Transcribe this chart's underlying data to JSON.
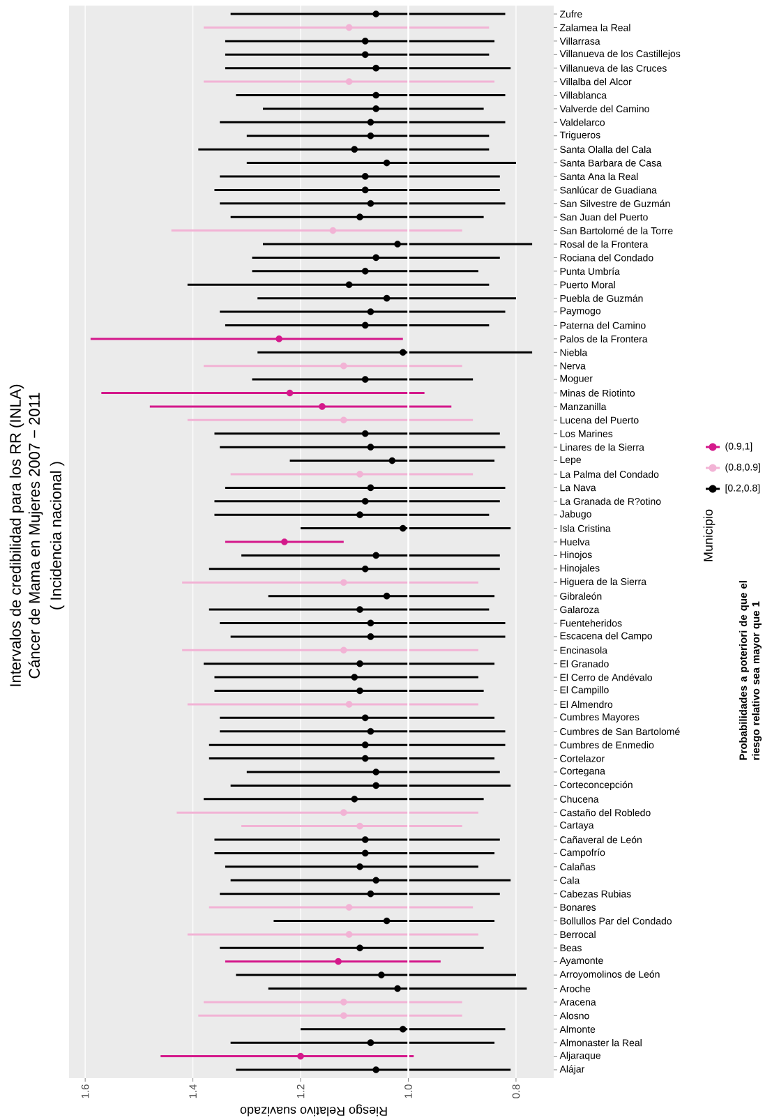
{
  "chart_data": {
    "type": "scatter",
    "orientation": "horizontal",
    "title": "Intervalos de credibilidad para los RR (INLA)",
    "subtitle": "Cáncer de Mama en Mujeres 2007 − 2011",
    "annotations": [
      "( Incidencia nacional )"
    ],
    "xlabel": "Riesgo Relativo suavizado",
    "ylabel": "Municipio",
    "legend_title": "Probabilidades a poteriori de que el riesgo relativo sea mayor que 1",
    "legend": "right",
    "grid": "x",
    "marker": "circle",
    "xlim": [
      1.63,
      0.73
    ],
    "xticks": [
      1.6,
      1.4,
      1.2,
      {
        "value": 1,
        "label": "1.0"
      },
      0.8
    ],
    "ref_lines": [
      {
        "axis": "x",
        "value": 1,
        "color": "#ffffff"
      }
    ],
    "categories": [
      "Zufre",
      "Zalamea la Real",
      "Villarrasa",
      "Villanueva de los Castillejos",
      "Villanueva de las Cruces",
      "Villalba del Alcor",
      "Villablanca",
      "Valverde del Camino",
      "Valdelarco",
      "Trigueros",
      "Santa Olalla del Cala",
      "Santa Barbara de Casa",
      "Santa Ana la Real",
      "Sanlúcar de Guadiana",
      "San Silvestre de Guzmán",
      "San Juan del Puerto",
      "San Bartolomé de la Torre",
      "Rosal de la Frontera",
      "Rociana del Condado",
      "Punta Umbría",
      "Puerto Moral",
      "Puebla de Guzmán",
      "Paymogo",
      "Paterna del Camino",
      "Palos de la Frontera",
      "Niebla",
      "Nerva",
      "Moguer",
      "Minas de Riotinto",
      "Manzanilla",
      "Lucena del Puerto",
      "Los Marines",
      "Linares de la Sierra",
      "Lepe",
      "La Palma del Condado",
      "La Nava",
      "La Granada de R?otino",
      "Jabugo",
      "Isla Cristina",
      "Huelva",
      "Hinojos",
      "Hinojales",
      "Higuera de la Sierra",
      "Gibraleón",
      "Galaroza",
      "Fuenteheridos",
      "Escacena del Campo",
      "Encinasola",
      "El Granado",
      "El Cerro de Andévalo",
      "El Campillo",
      "El Almendro",
      "Cumbres Mayores",
      "Cumbres de San Bartolomé",
      "Cumbres de Enmedio",
      "Cortelazor",
      "Cortegana",
      "Corteconcepción",
      "Chucena",
      "Castaño del Robledo",
      "Cartaya",
      "Cañaveral de León",
      "Campofrío",
      "Calañas",
      "Cala",
      "Cabezas Rubias",
      "Bonares",
      "Bollullos Par del Condado",
      "Berrocal",
      "Beas",
      "Ayamonte",
      "Arroyomolinos de León",
      "Aroche",
      "Aracena",
      "Alosno",
      "Almonte",
      "Almonaster la Real",
      "Aljaraque",
      "Alájar"
    ],
    "series": [
      {
        "name": "[0.2,0.8]",
        "color": "#000000",
        "values": [
          1.06,
          null,
          1.08,
          1.08,
          1.06,
          null,
          1.06,
          1.06,
          1.07,
          1.07,
          1.1,
          1.04,
          1.08,
          1.08,
          1.07,
          1.09,
          null,
          1.02,
          1.06,
          1.08,
          1.11,
          1.04,
          1.07,
          1.08,
          null,
          1.01,
          null,
          1.08,
          null,
          null,
          null,
          1.08,
          1.07,
          1.03,
          null,
          1.07,
          1.08,
          1.09,
          1.01,
          null,
          1.06,
          1.08,
          null,
          1.04,
          1.09,
          1.07,
          1.07,
          null,
          1.09,
          1.1,
          1.09,
          null,
          1.08,
          1.07,
          1.08,
          1.08,
          1.06,
          1.06,
          1.1,
          null,
          null,
          1.08,
          1.08,
          1.09,
          1.06,
          1.07,
          null,
          1.04,
          null,
          1.09,
          null,
          1.05,
          1.02,
          null,
          null,
          1.01,
          1.07,
          null,
          1.06
        ],
        "errors": [
          [
            0.82,
            1.33
          ],
          null,
          [
            0.84,
            1.34
          ],
          [
            0.85,
            1.34
          ],
          [
            0.81,
            1.34
          ],
          null,
          [
            0.82,
            1.32
          ],
          [
            0.86,
            1.27
          ],
          [
            0.82,
            1.35
          ],
          [
            0.85,
            1.3
          ],
          [
            0.85,
            1.39
          ],
          [
            0.8,
            1.3
          ],
          [
            0.83,
            1.35
          ],
          [
            0.83,
            1.36
          ],
          [
            0.82,
            1.35
          ],
          [
            0.86,
            1.33
          ],
          null,
          [
            0.77,
            1.27
          ],
          [
            0.83,
            1.29
          ],
          [
            0.87,
            1.29
          ],
          [
            0.85,
            1.41
          ],
          [
            0.8,
            1.28
          ],
          [
            0.82,
            1.35
          ],
          [
            0.85,
            1.34
          ],
          null,
          [
            0.77,
            1.28
          ],
          null,
          [
            0.88,
            1.29
          ],
          null,
          null,
          null,
          [
            0.83,
            1.36
          ],
          [
            0.82,
            1.35
          ],
          [
            0.84,
            1.22
          ],
          null,
          [
            0.82,
            1.34
          ],
          [
            0.83,
            1.36
          ],
          [
            0.85,
            1.36
          ],
          [
            0.81,
            1.2
          ],
          null,
          [
            0.83,
            1.31
          ],
          [
            0.83,
            1.37
          ],
          null,
          [
            0.84,
            1.26
          ],
          [
            0.85,
            1.37
          ],
          [
            0.82,
            1.35
          ],
          [
            0.82,
            1.33
          ],
          null,
          [
            0.84,
            1.38
          ],
          [
            0.87,
            1.36
          ],
          [
            0.86,
            1.36
          ],
          null,
          [
            0.84,
            1.35
          ],
          [
            0.82,
            1.35
          ],
          [
            0.82,
            1.37
          ],
          [
            0.84,
            1.37
          ],
          [
            0.83,
            1.3
          ],
          [
            0.81,
            1.33
          ],
          [
            0.86,
            1.38
          ],
          null,
          null,
          [
            0.83,
            1.36
          ],
          [
            0.84,
            1.36
          ],
          [
            0.87,
            1.34
          ],
          [
            0.81,
            1.33
          ],
          [
            0.83,
            1.35
          ],
          null,
          [
            0.84,
            1.25
          ],
          null,
          [
            0.86,
            1.35
          ],
          null,
          [
            0.8,
            1.32
          ],
          [
            0.78,
            1.26
          ],
          null,
          null,
          [
            0.82,
            1.2
          ],
          [
            0.84,
            1.33
          ],
          null,
          [
            0.81,
            1.32
          ]
        ]
      },
      {
        "name": "(0.8,0.9]",
        "color": "#f2b3d5",
        "values": [
          null,
          1.11,
          null,
          null,
          null,
          1.11,
          null,
          null,
          null,
          null,
          null,
          null,
          null,
          null,
          null,
          null,
          1.14,
          null,
          null,
          null,
          null,
          null,
          null,
          null,
          null,
          null,
          1.12,
          null,
          null,
          null,
          1.12,
          null,
          null,
          null,
          1.09,
          null,
          null,
          null,
          null,
          null,
          null,
          null,
          1.12,
          null,
          null,
          null,
          null,
          1.12,
          null,
          null,
          null,
          1.11,
          null,
          null,
          null,
          null,
          null,
          null,
          null,
          1.12,
          1.09,
          null,
          null,
          null,
          null,
          null,
          1.11,
          null,
          1.11,
          null,
          null,
          null,
          null,
          1.12,
          1.12,
          null,
          null,
          null,
          null
        ],
        "errors": [
          null,
          [
            0.85,
            1.38
          ],
          null,
          null,
          null,
          [
            0.84,
            1.38
          ],
          null,
          null,
          null,
          null,
          null,
          null,
          null,
          null,
          null,
          null,
          [
            0.9,
            1.44
          ],
          null,
          null,
          null,
          null,
          null,
          null,
          null,
          null,
          null,
          [
            0.9,
            1.38
          ],
          null,
          null,
          null,
          [
            0.88,
            1.41
          ],
          null,
          null,
          null,
          [
            0.88,
            1.33
          ],
          null,
          null,
          null,
          null,
          null,
          null,
          null,
          [
            0.87,
            1.42
          ],
          null,
          null,
          null,
          null,
          [
            0.87,
            1.42
          ],
          null,
          null,
          null,
          [
            0.87,
            1.41
          ],
          null,
          null,
          null,
          null,
          null,
          null,
          null,
          [
            0.87,
            1.43
          ],
          [
            0.9,
            1.31
          ],
          null,
          null,
          null,
          null,
          null,
          [
            0.88,
            1.37
          ],
          null,
          [
            0.87,
            1.41
          ],
          null,
          null,
          null,
          null,
          [
            0.9,
            1.38
          ],
          [
            0.9,
            1.39
          ],
          null,
          null,
          null,
          null
        ]
      },
      {
        "name": "(0.9,1]",
        "color": "#d4198b",
        "values": [
          null,
          null,
          null,
          null,
          null,
          null,
          null,
          null,
          null,
          null,
          null,
          null,
          null,
          null,
          null,
          null,
          null,
          null,
          null,
          null,
          null,
          null,
          null,
          null,
          1.24,
          null,
          null,
          null,
          1.22,
          1.16,
          null,
          null,
          null,
          null,
          null,
          null,
          null,
          null,
          null,
          1.23,
          null,
          null,
          null,
          null,
          null,
          null,
          null,
          null,
          null,
          null,
          null,
          null,
          null,
          null,
          null,
          null,
          null,
          null,
          null,
          null,
          null,
          null,
          null,
          null,
          null,
          null,
          null,
          null,
          null,
          null,
          1.13,
          null,
          null,
          null,
          null,
          null,
          null,
          1.2,
          null
        ],
        "errors": [
          null,
          null,
          null,
          null,
          null,
          null,
          null,
          null,
          null,
          null,
          null,
          null,
          null,
          null,
          null,
          null,
          null,
          null,
          null,
          null,
          null,
          null,
          null,
          null,
          [
            1.01,
            1.59
          ],
          null,
          null,
          null,
          [
            0.97,
            1.57
          ],
          [
            0.92,
            1.48
          ],
          null,
          null,
          null,
          null,
          null,
          null,
          null,
          null,
          null,
          [
            1.12,
            1.34
          ],
          null,
          null,
          null,
          null,
          null,
          null,
          null,
          null,
          null,
          null,
          null,
          null,
          null,
          null,
          null,
          null,
          null,
          null,
          null,
          null,
          null,
          null,
          null,
          null,
          null,
          null,
          null,
          null,
          null,
          null,
          [
            0.94,
            1.34
          ],
          null,
          null,
          null,
          null,
          null,
          null,
          [
            0.99,
            1.46
          ],
          null
        ]
      }
    ]
  }
}
